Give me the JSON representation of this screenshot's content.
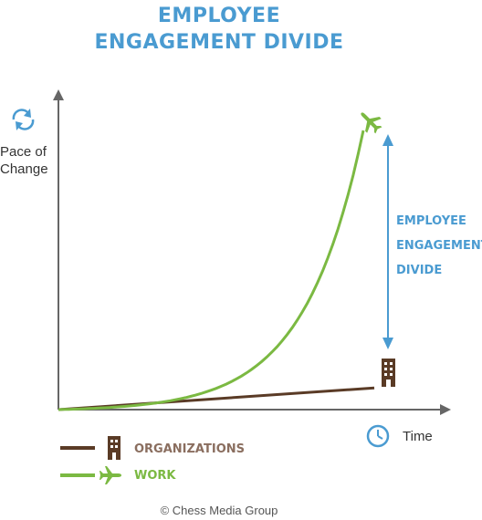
{
  "title": {
    "line1": "EMPLOYEE",
    "line2": "ENGAGEMENT DIVIDE"
  },
  "y_axis_label": {
    "line1": "Pace of",
    "line2": "Change"
  },
  "x_axis_label": "Time",
  "divide_label": {
    "line1": "EMPLOYEE",
    "line2": "ENGAGEMENT",
    "line3": "DIVIDE"
  },
  "legend": [
    {
      "label": "ORGANIZATIONS",
      "color": "#5a3b26",
      "icon": "building-icon"
    },
    {
      "label": "WORK",
      "color": "#7bb942",
      "icon": "airplane-icon"
    }
  ],
  "footer": "© Chess Media Group",
  "colors": {
    "accent": "#4a9bd1",
    "organizations": "#5a3b26",
    "work": "#7bb942",
    "axis": "#666666"
  },
  "icons": {
    "y_axis": "refresh-icon",
    "x_axis": "clock-icon"
  },
  "chart_data": {
    "type": "line",
    "title": "EMPLOYEE ENGAGEMENT DIVIDE",
    "xlabel": "Time",
    "ylabel": "Pace of Change",
    "grid": false,
    "series": [
      {
        "name": "ORGANIZATIONS",
        "shape": "linear",
        "end_level": 0.07
      },
      {
        "name": "WORK",
        "shape": "exponential",
        "end_level": 0.9
      }
    ],
    "annotation": "EMPLOYEE ENGAGEMENT DIVIDE"
  }
}
